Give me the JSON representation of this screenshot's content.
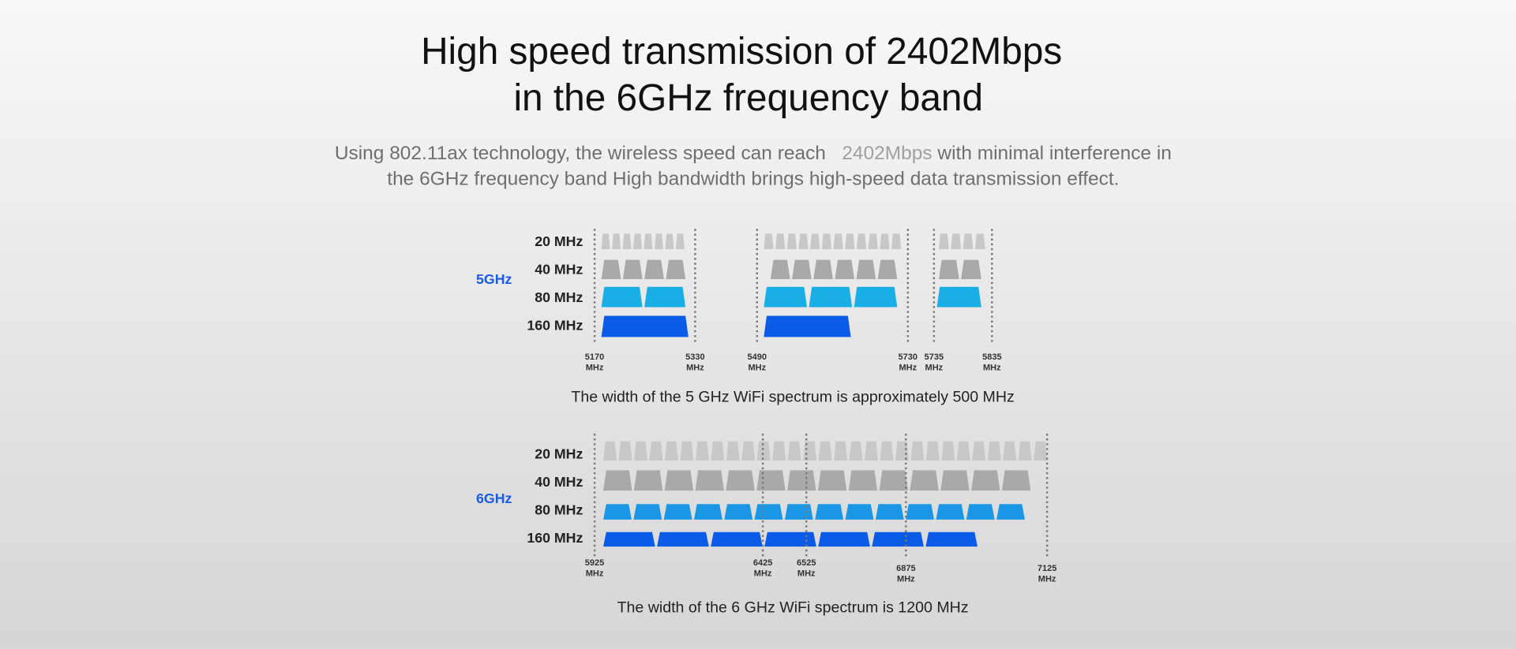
{
  "header": {
    "title": [
      "High speed transmission of 2402Mbps",
      "in the 6GHz frequency band"
    ]
  },
  "description": {
    "line1_start": "Using 802.11ax technology, the wireless speed can reach",
    "highlight": "2402Mbps",
    "line1_end": "with minimal interference in",
    "line2": "the 6GHz frequency band High bandwidth brings high-speed data transmission effect."
  },
  "diagrams": [
    {
      "band": "5GHz",
      "rows": [
        "20 MHz",
        "40 MHz",
        "80 MHz",
        "160 MHz"
      ],
      "markers": [
        {
          "value": 5170,
          "unit": "MHz"
        },
        {
          "value": 5330,
          "unit": "MHz"
        },
        {
          "value": 5490,
          "unit": "MHz"
        },
        {
          "value": 5730,
          "unit": "MHz"
        },
        {
          "value": 5735,
          "unit": "MHz"
        },
        {
          "value": 5835,
          "unit": "MHz"
        }
      ],
      "caption": "The width of the 5 GHz WiFi spectrum is approximately 500 MHz"
    },
    {
      "band": "6GHz",
      "rows": [
        "20 MHz",
        "40 MHz",
        "80 MHz",
        "160 MHz"
      ],
      "markers": [
        {
          "value": 5925,
          "unit": "MHz"
        },
        {
          "value": 6425,
          "unit": "MHz"
        },
        {
          "value": 6525,
          "unit": "MHz"
        },
        {
          "value": 6875,
          "unit": "MHz"
        },
        {
          "value": 7125,
          "unit": "MHz"
        }
      ],
      "caption": "The width of the 6 GHz WiFi spectrum is 1200 MHz"
    }
  ]
}
